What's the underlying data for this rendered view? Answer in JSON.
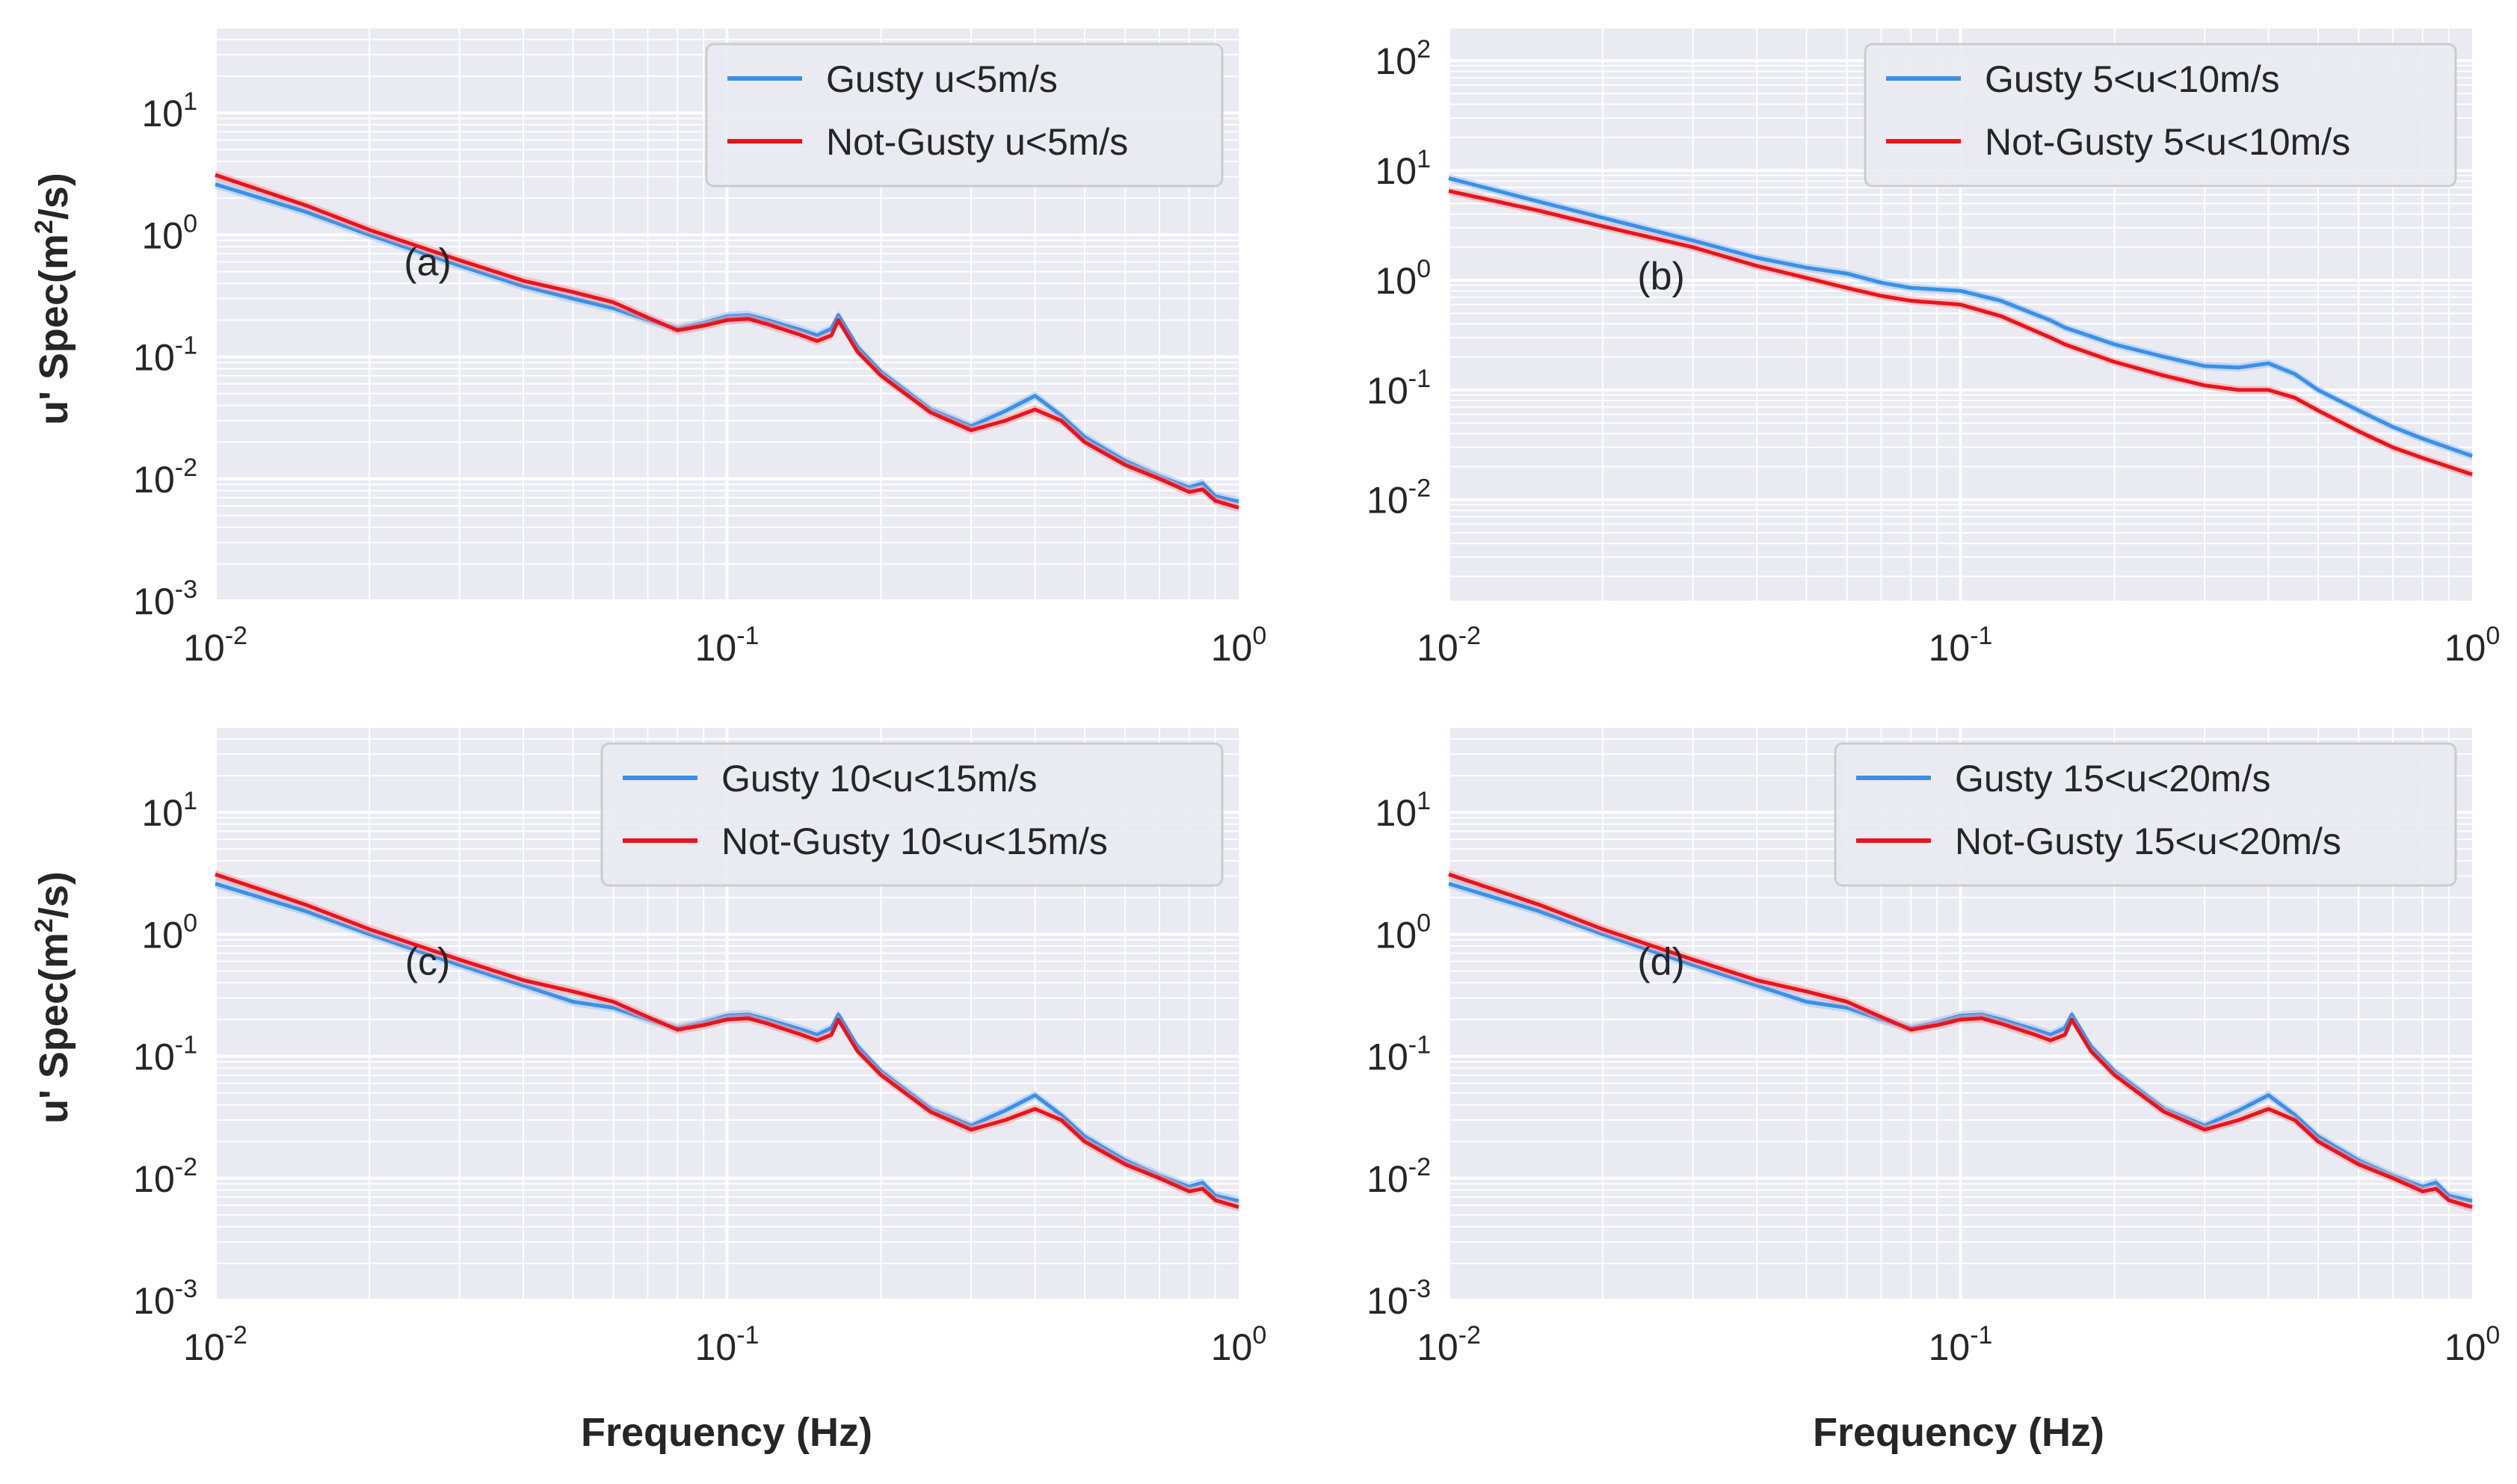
{
  "colors": {
    "gusty": "#3b8fe8",
    "not_gusty": "#e8141c",
    "not_gusty_band": "#f4a0a4",
    "gusty_band": "#9cc6f2",
    "plot_bg": "#eaeaf2",
    "grid": "#ffffff"
  },
  "figure": {
    "xlabel": "Frequency (Hz)",
    "ylabel": "u' Spec(m",
    "ylabel_sup": "2",
    "ylabel_end": "/s)"
  },
  "chart_data": [
    {
      "type": "line",
      "panel_label": "(a)",
      "xscale": "log",
      "yscale": "log",
      "xlim": [
        0.01,
        1
      ],
      "ylim": [
        0.001,
        50
      ],
      "xticks": [
        {
          "base": "10",
          "exp": "-2"
        },
        {
          "base": "10",
          "exp": "-1"
        },
        {
          "base": "10",
          "exp": "0"
        }
      ],
      "yticks": [
        {
          "base": "10",
          "exp": "-3",
          "value": 0.001
        },
        {
          "base": "10",
          "exp": "-2",
          "value": 0.01
        },
        {
          "base": "10",
          "exp": "-1",
          "value": 0.1
        },
        {
          "base": "10",
          "exp": "0",
          "value": 1
        },
        {
          "base": "10",
          "exp": "1",
          "value": 10
        }
      ],
      "legend_position": "top-right",
      "series": [
        {
          "name": "Gusty u<5m/s",
          "color_key": "gusty",
          "x": [
            0.01,
            0.015,
            0.02,
            0.03,
            0.04,
            0.05,
            0.06,
            0.07,
            0.08,
            0.09,
            0.1,
            0.11,
            0.12,
            0.14,
            0.15,
            0.16,
            0.165,
            0.18,
            0.2,
            0.25,
            0.3,
            0.35,
            0.4,
            0.45,
            0.5,
            0.6,
            0.7,
            0.8,
            0.85,
            0.9,
            1.0
          ],
          "y": [
            2.6,
            1.55,
            1.0,
            0.56,
            0.38,
            0.3,
            0.25,
            0.2,
            0.17,
            0.19,
            0.215,
            0.22,
            0.2,
            0.165,
            0.15,
            0.17,
            0.22,
            0.12,
            0.075,
            0.037,
            0.027,
            0.036,
            0.048,
            0.033,
            0.022,
            0.014,
            0.0105,
            0.0085,
            0.0092,
            0.0072,
            0.0065
          ]
        },
        {
          "name": "Not-Gusty u<5m/s",
          "color_key": "not_gusty",
          "x": [
            0.01,
            0.015,
            0.02,
            0.03,
            0.04,
            0.05,
            0.06,
            0.07,
            0.08,
            0.09,
            0.1,
            0.11,
            0.12,
            0.14,
            0.15,
            0.16,
            0.165,
            0.18,
            0.2,
            0.25,
            0.3,
            0.35,
            0.4,
            0.45,
            0.5,
            0.6,
            0.7,
            0.8,
            0.85,
            0.9,
            1.0
          ],
          "y": [
            3.1,
            1.75,
            1.1,
            0.62,
            0.42,
            0.34,
            0.28,
            0.21,
            0.165,
            0.18,
            0.2,
            0.205,
            0.185,
            0.15,
            0.135,
            0.15,
            0.2,
            0.11,
            0.07,
            0.035,
            0.025,
            0.03,
            0.037,
            0.03,
            0.02,
            0.013,
            0.01,
            0.0078,
            0.0082,
            0.0066,
            0.0058
          ]
        }
      ]
    },
    {
      "type": "line",
      "panel_label": "(b)",
      "xscale": "log",
      "yscale": "log",
      "xlim": [
        0.01,
        1
      ],
      "ylim": [
        0.0012,
        200
      ],
      "xticks": [
        {
          "base": "10",
          "exp": "-2"
        },
        {
          "base": "10",
          "exp": "-1"
        },
        {
          "base": "10",
          "exp": "0"
        }
      ],
      "yticks": [
        {
          "base": "10",
          "exp": "-2",
          "value": 0.01
        },
        {
          "base": "10",
          "exp": "-1",
          "value": 0.1
        },
        {
          "base": "10",
          "exp": "0",
          "value": 1
        },
        {
          "base": "10",
          "exp": "1",
          "value": 10
        },
        {
          "base": "10",
          "exp": "2",
          "value": 100
        }
      ],
      "legend_position": "top-right",
      "series": [
        {
          "name": "Gusty 5<u<10m/s",
          "color_key": "gusty",
          "x": [
            0.01,
            0.015,
            0.02,
            0.03,
            0.04,
            0.05,
            0.06,
            0.07,
            0.08,
            0.1,
            0.12,
            0.15,
            0.16,
            0.2,
            0.25,
            0.3,
            0.35,
            0.4,
            0.45,
            0.5,
            0.6,
            0.7,
            0.8,
            1.0
          ],
          "y": [
            8.5,
            5.2,
            3.7,
            2.3,
            1.6,
            1.3,
            1.15,
            0.95,
            0.85,
            0.8,
            0.65,
            0.43,
            0.37,
            0.26,
            0.2,
            0.165,
            0.16,
            0.175,
            0.14,
            0.1,
            0.065,
            0.046,
            0.036,
            0.025
          ]
        },
        {
          "name": "Not-Gusty 5<u<10m/s",
          "color_key": "not_gusty",
          "x": [
            0.01,
            0.015,
            0.02,
            0.03,
            0.04,
            0.05,
            0.06,
            0.07,
            0.08,
            0.1,
            0.12,
            0.15,
            0.16,
            0.2,
            0.25,
            0.3,
            0.35,
            0.4,
            0.45,
            0.5,
            0.6,
            0.7,
            0.8,
            1.0
          ],
          "y": [
            6.5,
            4.3,
            3.1,
            2.0,
            1.35,
            1.05,
            0.85,
            0.72,
            0.65,
            0.6,
            0.47,
            0.3,
            0.26,
            0.18,
            0.135,
            0.11,
            0.1,
            0.1,
            0.085,
            0.065,
            0.042,
            0.03,
            0.024,
            0.017
          ]
        }
      ]
    },
    {
      "type": "line",
      "panel_label": "(c)",
      "xscale": "log",
      "yscale": "log",
      "xlim": [
        0.01,
        1
      ],
      "ylim": [
        0.001,
        50
      ],
      "xticks": [
        {
          "base": "10",
          "exp": "-2"
        },
        {
          "base": "10",
          "exp": "-1"
        },
        {
          "base": "10",
          "exp": "0"
        }
      ],
      "yticks": [
        {
          "base": "10",
          "exp": "-3",
          "value": 0.001
        },
        {
          "base": "10",
          "exp": "-2",
          "value": 0.01
        },
        {
          "base": "10",
          "exp": "-1",
          "value": 0.1
        },
        {
          "base": "10",
          "exp": "0",
          "value": 1
        },
        {
          "base": "10",
          "exp": "1",
          "value": 10
        }
      ],
      "legend_position": "top-right",
      "series": [
        {
          "name": "Gusty 10<u<15m/s",
          "color_key": "gusty",
          "x": [
            0.01,
            0.015,
            0.02,
            0.03,
            0.04,
            0.05,
            0.06,
            0.07,
            0.08,
            0.09,
            0.1,
            0.11,
            0.12,
            0.14,
            0.15,
            0.16,
            0.165,
            0.18,
            0.2,
            0.25,
            0.3,
            0.35,
            0.4,
            0.45,
            0.5,
            0.6,
            0.7,
            0.8,
            0.85,
            0.9,
            1.0
          ],
          "y": [
            2.6,
            1.55,
            1.0,
            0.56,
            0.38,
            0.28,
            0.25,
            0.2,
            0.17,
            0.19,
            0.215,
            0.22,
            0.2,
            0.165,
            0.15,
            0.17,
            0.22,
            0.12,
            0.075,
            0.037,
            0.027,
            0.036,
            0.048,
            0.033,
            0.022,
            0.014,
            0.0105,
            0.0085,
            0.0092,
            0.0072,
            0.0065
          ]
        },
        {
          "name": "Not-Gusty 10<u<15m/s",
          "color_key": "not_gusty",
          "x": [
            0.01,
            0.015,
            0.02,
            0.03,
            0.04,
            0.05,
            0.06,
            0.07,
            0.08,
            0.09,
            0.1,
            0.11,
            0.12,
            0.14,
            0.15,
            0.16,
            0.165,
            0.18,
            0.2,
            0.25,
            0.3,
            0.35,
            0.4,
            0.45,
            0.5,
            0.6,
            0.7,
            0.8,
            0.85,
            0.9,
            1.0
          ],
          "y": [
            3.1,
            1.75,
            1.1,
            0.62,
            0.42,
            0.34,
            0.28,
            0.21,
            0.165,
            0.18,
            0.2,
            0.205,
            0.185,
            0.15,
            0.135,
            0.15,
            0.2,
            0.11,
            0.07,
            0.035,
            0.025,
            0.03,
            0.037,
            0.03,
            0.02,
            0.013,
            0.01,
            0.0078,
            0.0082,
            0.0066,
            0.0058
          ]
        }
      ]
    },
    {
      "type": "line",
      "panel_label": "(d)",
      "xscale": "log",
      "yscale": "log",
      "xlim": [
        0.01,
        1
      ],
      "ylim": [
        0.001,
        50
      ],
      "xticks": [
        {
          "base": "10",
          "exp": "-2"
        },
        {
          "base": "10",
          "exp": "-1"
        },
        {
          "base": "10",
          "exp": "0"
        }
      ],
      "yticks": [
        {
          "base": "10",
          "exp": "-3",
          "value": 0.001
        },
        {
          "base": "10",
          "exp": "-2",
          "value": 0.01
        },
        {
          "base": "10",
          "exp": "-1",
          "value": 0.1
        },
        {
          "base": "10",
          "exp": "0",
          "value": 1
        },
        {
          "base": "10",
          "exp": "1",
          "value": 10
        }
      ],
      "legend_position": "top-right",
      "series": [
        {
          "name": "Gusty 15<u<20m/s",
          "color_key": "gusty",
          "x": [
            0.01,
            0.015,
            0.02,
            0.03,
            0.04,
            0.05,
            0.06,
            0.07,
            0.08,
            0.09,
            0.1,
            0.11,
            0.12,
            0.14,
            0.15,
            0.16,
            0.165,
            0.18,
            0.2,
            0.25,
            0.3,
            0.35,
            0.4,
            0.45,
            0.5,
            0.6,
            0.7,
            0.8,
            0.85,
            0.9,
            1.0
          ],
          "y": [
            2.6,
            1.55,
            1.0,
            0.56,
            0.38,
            0.28,
            0.25,
            0.2,
            0.17,
            0.19,
            0.215,
            0.22,
            0.2,
            0.165,
            0.15,
            0.17,
            0.22,
            0.12,
            0.075,
            0.037,
            0.027,
            0.036,
            0.048,
            0.033,
            0.022,
            0.014,
            0.0105,
            0.0085,
            0.0092,
            0.0072,
            0.0065
          ]
        },
        {
          "name": "Not-Gusty 15<u<20m/s",
          "color_key": "not_gusty",
          "x": [
            0.01,
            0.015,
            0.02,
            0.03,
            0.04,
            0.05,
            0.06,
            0.07,
            0.08,
            0.09,
            0.1,
            0.11,
            0.12,
            0.14,
            0.15,
            0.16,
            0.165,
            0.18,
            0.2,
            0.25,
            0.3,
            0.35,
            0.4,
            0.45,
            0.5,
            0.6,
            0.7,
            0.8,
            0.85,
            0.9,
            1.0
          ],
          "y": [
            3.1,
            1.75,
            1.1,
            0.62,
            0.42,
            0.34,
            0.28,
            0.21,
            0.165,
            0.18,
            0.2,
            0.205,
            0.185,
            0.15,
            0.135,
            0.15,
            0.2,
            0.11,
            0.07,
            0.035,
            0.025,
            0.03,
            0.037,
            0.03,
            0.02,
            0.013,
            0.01,
            0.0078,
            0.0082,
            0.0066,
            0.0058
          ]
        }
      ]
    }
  ]
}
